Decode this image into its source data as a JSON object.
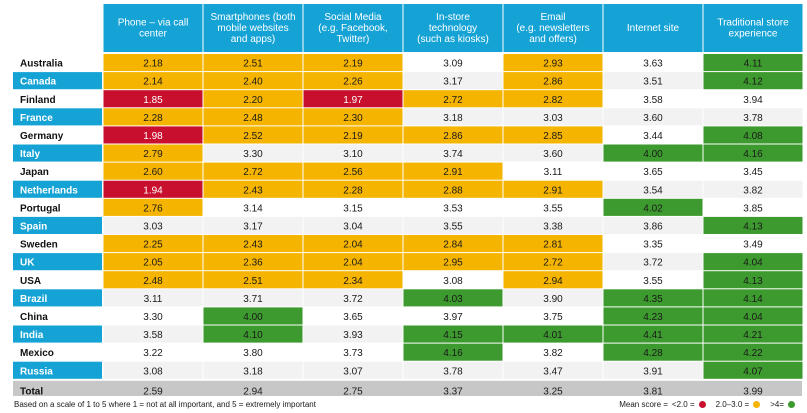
{
  "chart_data": {
    "type": "heatmap",
    "columns": [
      [
        "Phone – via call",
        "center"
      ],
      [
        "Smartphones (both",
        "mobile websites",
        "and apps)"
      ],
      [
        "Social Media",
        "(e.g. Facebook,",
        "Twitter)"
      ],
      [
        "In-store",
        "technology",
        "(such as kiosks)"
      ],
      [
        "Email",
        "(e.g. newsletters",
        "and offers)"
      ],
      [
        "Internet site"
      ],
      [
        "Traditional store",
        "experience"
      ]
    ],
    "rows": [
      {
        "name": "Australia",
        "highlight": false,
        "values": [
          "2.18",
          "2.51",
          "2.19",
          "3.09",
          "2.93",
          "3.63",
          "4.11"
        ]
      },
      {
        "name": "Canada",
        "highlight": true,
        "values": [
          "2.14",
          "2.40",
          "2.26",
          "3.17",
          "2.86",
          "3.51",
          "4.12"
        ]
      },
      {
        "name": "Finland",
        "highlight": false,
        "values": [
          "1.85",
          "2.20",
          "1.97",
          "2.72",
          "2.82",
          "3.58",
          "3.94"
        ]
      },
      {
        "name": "France",
        "highlight": true,
        "values": [
          "2.28",
          "2.48",
          "2.30",
          "3.18",
          "3.03",
          "3.60",
          "3.78"
        ]
      },
      {
        "name": "Germany",
        "highlight": false,
        "values": [
          "1.98",
          "2.52",
          "2.19",
          "2.86",
          "2.85",
          "3.44",
          "4.08"
        ]
      },
      {
        "name": "Italy",
        "highlight": true,
        "values": [
          "2.79",
          "3.30",
          "3.10",
          "3.74",
          "3.60",
          "4.00",
          "4.16"
        ]
      },
      {
        "name": "Japan",
        "highlight": false,
        "values": [
          "2.60",
          "2.72",
          "2.56",
          "2.91",
          "3.11",
          "3.65",
          "3.45"
        ]
      },
      {
        "name": "Netherlands",
        "highlight": true,
        "values": [
          "1.94",
          "2.43",
          "2.28",
          "2.88",
          "2.91",
          "3.54",
          "3.82"
        ]
      },
      {
        "name": "Portugal",
        "highlight": false,
        "values": [
          "2.76",
          "3.14",
          "3.15",
          "3.53",
          "3.55",
          "4.02",
          "3.85"
        ]
      },
      {
        "name": "Spain",
        "highlight": true,
        "values": [
          "3.03",
          "3.17",
          "3.04",
          "3.55",
          "3.38",
          "3.86",
          "4.13"
        ]
      },
      {
        "name": "Sweden",
        "highlight": false,
        "values": [
          "2.25",
          "2.43",
          "2.04",
          "2.84",
          "2.81",
          "3.35",
          "3.49"
        ]
      },
      {
        "name": "UK",
        "highlight": true,
        "values": [
          "2.05",
          "2.36",
          "2.04",
          "2.95",
          "2.72",
          "3.72",
          "4.04"
        ]
      },
      {
        "name": "USA",
        "highlight": false,
        "values": [
          "2.48",
          "2.51",
          "2.34",
          "3.08",
          "2.94",
          "3.55",
          "4.13"
        ]
      },
      {
        "name": "Brazil",
        "highlight": true,
        "values": [
          "3.11",
          "3.71",
          "3.72",
          "4.03",
          "3.90",
          "4.35",
          "4.14"
        ]
      },
      {
        "name": "China",
        "highlight": false,
        "values": [
          "3.30",
          "4.00",
          "3.65",
          "3.97",
          "3.75",
          "4.23",
          "4.04"
        ]
      },
      {
        "name": "India",
        "highlight": true,
        "values": [
          "3.58",
          "4.10",
          "3.93",
          "4.15",
          "4.01",
          "4.41",
          "4.21"
        ]
      },
      {
        "name": "Mexico",
        "highlight": false,
        "values": [
          "3.22",
          "3.80",
          "3.73",
          "4.16",
          "3.82",
          "4.28",
          "4.22"
        ]
      },
      {
        "name": "Russia",
        "highlight": true,
        "values": [
          "3.08",
          "3.18",
          "3.07",
          "3.78",
          "3.47",
          "3.91",
          "4.07"
        ]
      }
    ],
    "total": {
      "name": "Total",
      "values": [
        "2.59",
        "2.94",
        "2.75",
        "3.37",
        "3.25",
        "3.81",
        "3.99"
      ]
    },
    "legend": {
      "title": "Mean score =",
      "items": [
        {
          "label": "<2.0 =",
          "color": "#c8102e"
        },
        {
          "label": "2.0–3.0 =",
          "color": "#f5b400"
        },
        {
          "label": ">4=",
          "color": "#3d9a2e"
        }
      ]
    },
    "colors": {
      "header": "#15a3d6",
      "country_blue": "#15a3d6",
      "low": "#c8102e",
      "mid": "#f5b400",
      "neutral_even": "#f2f2f2",
      "neutral_odd": "#ffffff",
      "high": "#3d9a2e",
      "total": "#c7c7c7"
    }
  },
  "footnote": "Based on a scale of 1 to 5 where 1 = not at all important, and 5 = extremely important"
}
